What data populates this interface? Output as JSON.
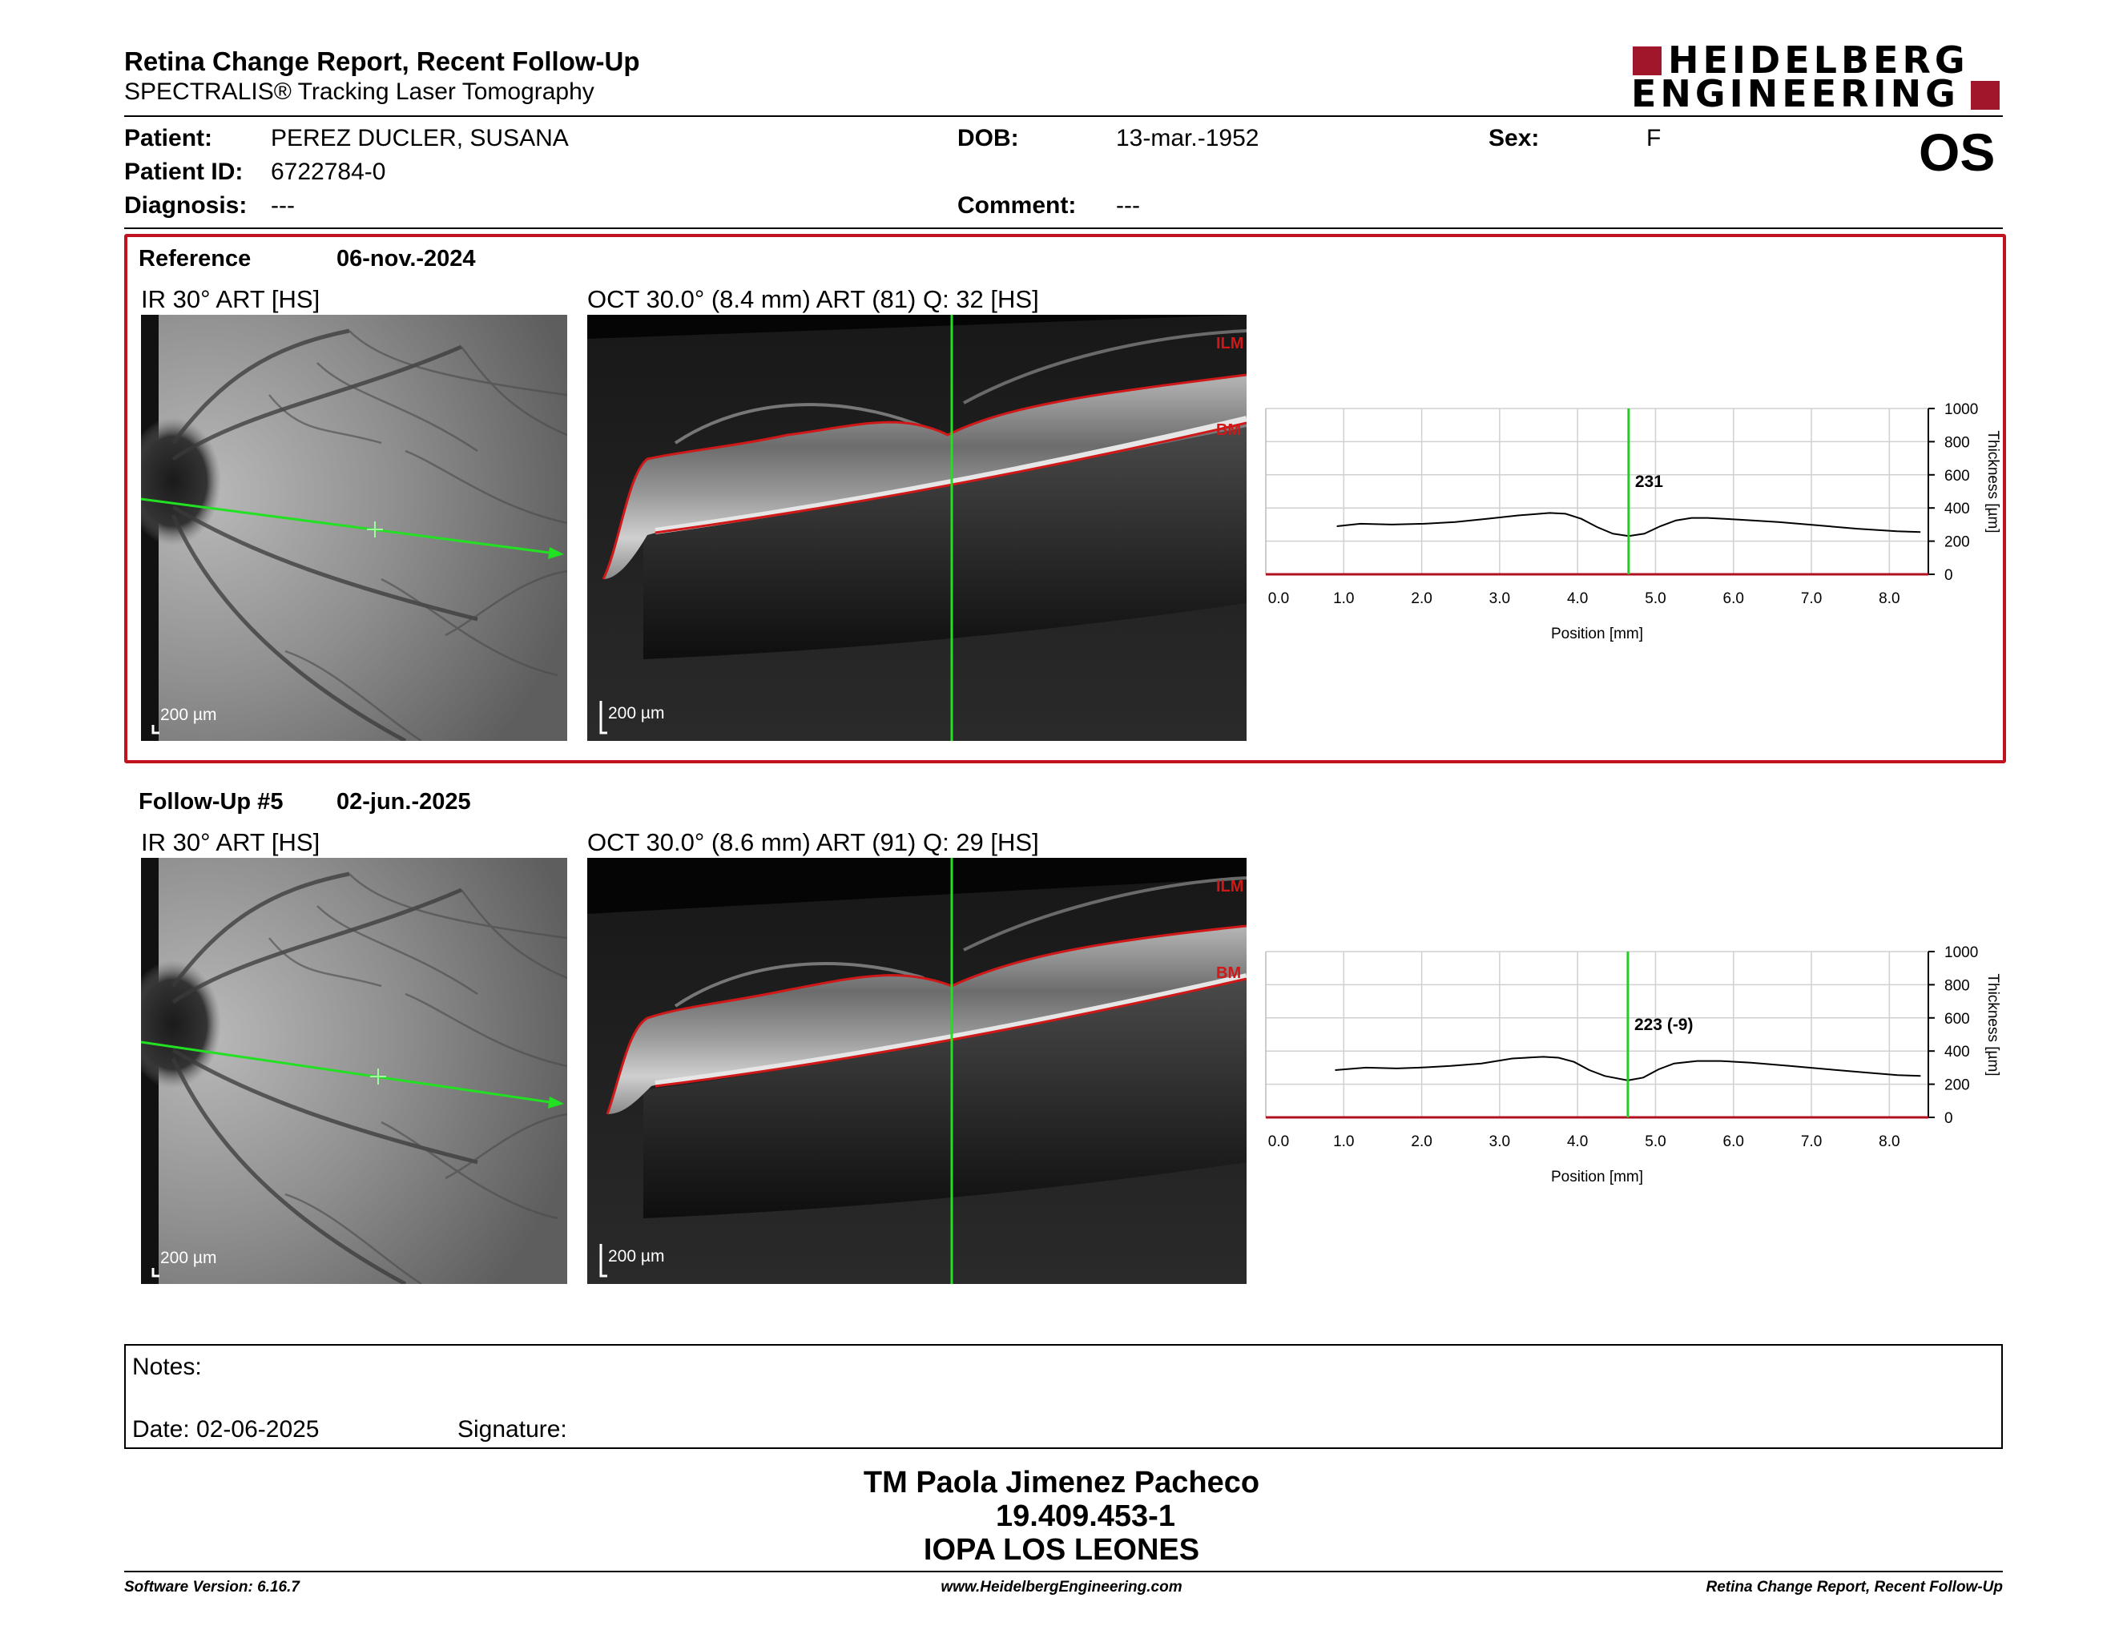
{
  "header": {
    "title": "Retina Change Report, Recent Follow-Up",
    "subtitle": "SPECTRALIS® Tracking Laser Tomography",
    "logo": {
      "line1": "HEIDELBERG",
      "line2": "ENGINEERING",
      "accent_color": "#a0172b"
    }
  },
  "patient": {
    "patient_label": "Patient:",
    "patient_value": "PEREZ DUCLER, SUSANA",
    "id_label": "Patient ID:",
    "id_value": "6722784-0",
    "diagnosis_label": "Diagnosis:",
    "diagnosis_value": "---",
    "dob_label": "DOB:",
    "dob_value": "13-mar.-1952",
    "comment_label": "Comment:",
    "comment_value": "---",
    "sex_label": "Sex:",
    "sex_value": "F",
    "eye": "OS"
  },
  "reference": {
    "label": "Reference",
    "date": "06-nov.-2024",
    "ir_caption": "IR 30° ART [HS]",
    "oct_caption": "OCT 30.0° (8.4 mm) ART (81) Q: 32 [HS]",
    "scale": "200 µm",
    "ilm": "ILM",
    "bm": "BM",
    "border_color": "#c0121f"
  },
  "followup": {
    "label": "Follow-Up #5",
    "date": "02-jun.-2025",
    "ir_caption": "IR 30° ART [HS]",
    "oct_caption": "OCT 30.0° (8.6 mm) ART (91) Q: 29 [HS]",
    "scale": "200 µm",
    "ilm": "ILM",
    "bm": "BM"
  },
  "chart_data": [
    {
      "type": "line",
      "xlabel": "Position [mm]",
      "ylabel": "Thickness [µm]",
      "xlim": [
        0,
        8.4
      ],
      "ylim": [
        0,
        1000
      ],
      "x_ticks": [
        "0.0",
        "1.0",
        "2.0",
        "3.0",
        "4.0",
        "5.0",
        "6.0",
        "7.0",
        "8.0"
      ],
      "y_ticks": [
        "0",
        "200",
        "400",
        "600",
        "800",
        "1000"
      ],
      "grid": true,
      "marker_x": 4.6,
      "marker_label": "231",
      "marker_color": "#22cc22",
      "series": [
        {
          "x": [
            0.9,
            1.2,
            1.6,
            2.0,
            2.4,
            2.8,
            3.2,
            3.6,
            3.8,
            4.0,
            4.2,
            4.4,
            4.6,
            4.8,
            5.0,
            5.2,
            5.4,
            5.6,
            6.0,
            6.5,
            7.0,
            7.5,
            8.0,
            8.3
          ],
          "y": [
            290,
            305,
            300,
            305,
            315,
            335,
            355,
            370,
            365,
            335,
            285,
            245,
            231,
            245,
            290,
            325,
            340,
            340,
            330,
            315,
            295,
            275,
            260,
            255
          ]
        }
      ]
    },
    {
      "type": "line",
      "xlabel": "Position [mm]",
      "ylabel": "Thickness [µm]",
      "xlim": [
        0,
        8.6
      ],
      "ylim": [
        0,
        1000
      ],
      "x_ticks": [
        "0.0",
        "1.0",
        "2.0",
        "3.0",
        "4.0",
        "5.0",
        "6.0",
        "7.0",
        "8.0"
      ],
      "y_ticks": [
        "0",
        "200",
        "400",
        "600",
        "800",
        "1000"
      ],
      "grid": true,
      "marker_x": 4.7,
      "marker_label": "223 (-9)",
      "marker_color": "#22cc22",
      "series": [
        {
          "x": [
            0.9,
            1.3,
            1.7,
            2.0,
            2.4,
            2.8,
            3.2,
            3.6,
            3.8,
            4.0,
            4.2,
            4.4,
            4.7,
            4.9,
            5.1,
            5.3,
            5.6,
            5.9,
            6.3,
            6.8,
            7.3,
            7.8,
            8.2,
            8.5
          ],
          "y": [
            285,
            300,
            295,
            300,
            310,
            325,
            355,
            365,
            360,
            335,
            285,
            250,
            223,
            240,
            290,
            325,
            340,
            340,
            330,
            310,
            290,
            270,
            255,
            250
          ]
        }
      ]
    }
  ],
  "notes": {
    "label": "Notes:",
    "date_label": "Date: 02-06-2025",
    "signature_label": "Signature:"
  },
  "footer": {
    "name": "TM Paola Jimenez Pacheco",
    "rut": "19.409.453-1",
    "clinic": "IOPA LOS LEONES",
    "software": "Software Version: 6.16.7",
    "url": "www.HeidelbergEngineering.com",
    "report": "Retina Change Report, Recent Follow-Up"
  }
}
